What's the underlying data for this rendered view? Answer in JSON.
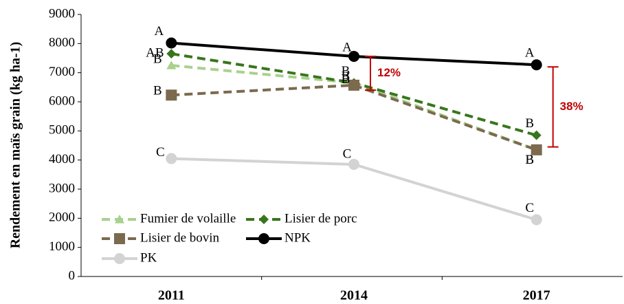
{
  "chart_data": {
    "type": "line",
    "ylabel": "Rendement en maïs grain (kg ha-1)",
    "categories": [
      "2011",
      "2014",
      "2017"
    ],
    "ylim": [
      0,
      9000
    ],
    "yticks": [
      0,
      1000,
      2000,
      3000,
      4000,
      5000,
      6000,
      7000,
      8000,
      9000
    ],
    "series": [
      {
        "name": "Fumier de volaille",
        "color": "#a9d18e",
        "marker": "triangle",
        "dashed": true,
        "values": [
          7250,
          6650,
          4350
        ],
        "letters": [
          "B",
          "B",
          "B"
        ]
      },
      {
        "name": "Lisier de porc",
        "color": "#38761d",
        "marker": "diamond",
        "dashed": true,
        "values": [
          7650,
          6650,
          4850
        ],
        "letters": [
          "AB",
          "B",
          "B"
        ]
      },
      {
        "name": "Lisier de bovin",
        "color": "#7b6a4e",
        "marker": "square",
        "dashed": true,
        "values": [
          6230,
          6570,
          4350
        ],
        "letters": [
          "B",
          "B",
          "B"
        ]
      },
      {
        "name": "NPK",
        "color": "#000000",
        "marker": "circle",
        "dashed": false,
        "values": [
          8020,
          7560,
          7270
        ],
        "letters": [
          "A",
          "A",
          "A"
        ]
      },
      {
        "name": "PK",
        "color": "#d3d3d3",
        "marker": "circle",
        "dashed": false,
        "values": [
          4050,
          3850,
          1950
        ],
        "letters": [
          "C",
          "C",
          "C"
        ]
      }
    ],
    "annotations": [
      {
        "text": "12%",
        "category": 1,
        "from": 7560,
        "to": 6400
      },
      {
        "text": "38%",
        "category": 2,
        "from": 7200,
        "to": 4450
      }
    ]
  }
}
